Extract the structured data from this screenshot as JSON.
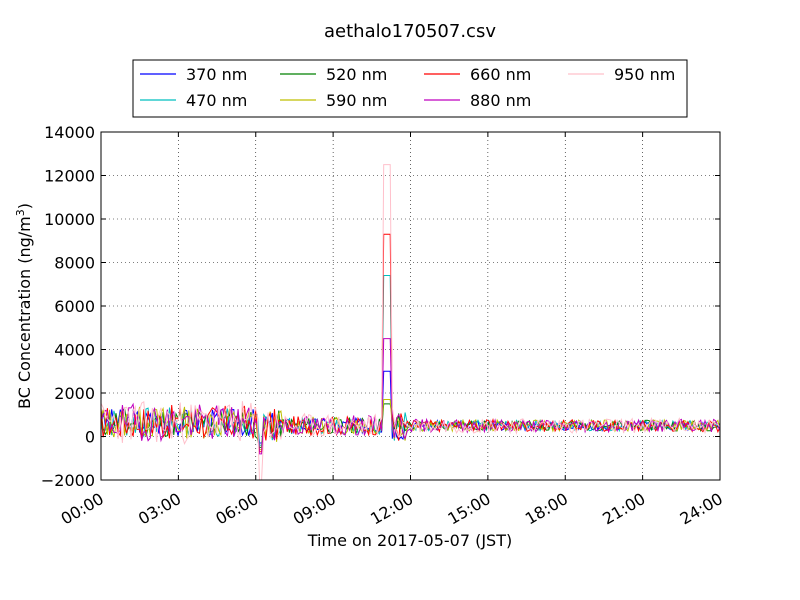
{
  "chart_data": {
    "type": "line",
    "title": "aethalo170507.csv",
    "xlabel": "Time on 2017-05-07 (JST)",
    "ylabel": "BC Concentration (ng/m",
    "ylabel_superscript": "3",
    "ylabel_suffix": ")",
    "x_unit": "hours",
    "xlim": [
      0,
      24
    ],
    "ylim": [
      -2000,
      14000
    ],
    "xticks": [
      0,
      3,
      6,
      9,
      12,
      15,
      18,
      21,
      24
    ],
    "xtick_labels": [
      "00:00",
      "03:00",
      "06:00",
      "09:00",
      "12:00",
      "15:00",
      "18:00",
      "21:00",
      "24:00"
    ],
    "yticks": [
      -2000,
      0,
      2000,
      4000,
      6000,
      8000,
      10000,
      12000,
      14000
    ],
    "ytick_labels": [
      "−2000",
      "0",
      "2000",
      "4000",
      "6000",
      "8000",
      "10000",
      "12000",
      "14000"
    ],
    "grid": true,
    "legend_position": "top",
    "series": [
      {
        "name": "370 nm",
        "color": "#0000ff",
        "amp": 650,
        "base": 500,
        "peak": 3000,
        "min": -300,
        "seed": 3
      },
      {
        "name": "470 nm",
        "color": "#00bfbf",
        "amp": 700,
        "base": 500,
        "peak": 7400,
        "min": -400,
        "seed": 7
      },
      {
        "name": "520 nm",
        "color": "#008000",
        "amp": 700,
        "base": 500,
        "peak": 1500,
        "min": -500,
        "seed": 11
      },
      {
        "name": "590 nm",
        "color": "#bfbf00",
        "amp": 750,
        "base": 500,
        "peak": 1700,
        "min": -600,
        "seed": 13
      },
      {
        "name": "660 nm",
        "color": "#ff0000",
        "amp": 800,
        "base": 500,
        "peak": 9300,
        "min": -700,
        "seed": 17
      },
      {
        "name": "880 nm",
        "color": "#bf00bf",
        "amp": 850,
        "base": 500,
        "peak": 4500,
        "min": -800,
        "seed": 19
      },
      {
        "name": "950 nm",
        "color": "#ffc0cb",
        "amp": 1000,
        "base": 500,
        "peak": 12500,
        "min": -2000,
        "seed": 23
      }
    ]
  }
}
